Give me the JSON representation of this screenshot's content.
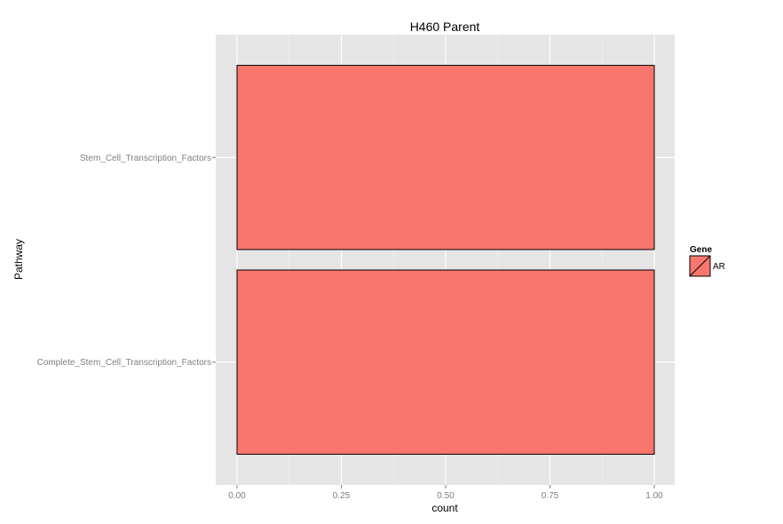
{
  "chart_data": {
    "type": "bar",
    "orientation": "horizontal",
    "title": "H460 Parent",
    "xlabel": "count",
    "ylabel": "Pathway",
    "categories": [
      "Complete_Stem_Cell_Transcription_Factors",
      "Stem_Cell_Transcription_Factors"
    ],
    "series": [
      {
        "name": "AR",
        "values": [
          1,
          1
        ]
      }
    ],
    "xlim": [
      0,
      1
    ],
    "xticks": [
      "0.00",
      "0.25",
      "0.50",
      "0.75",
      "1.00"
    ],
    "grid": true,
    "legend": {
      "title": "Gene",
      "placement": "right"
    },
    "colors": {
      "bar_fill": "#f8766d",
      "bar_stroke": "#000000",
      "panel_bg": "#e5e5e5",
      "grid_major": "#ffffff",
      "grid_minor": "#f2f2f2"
    }
  }
}
